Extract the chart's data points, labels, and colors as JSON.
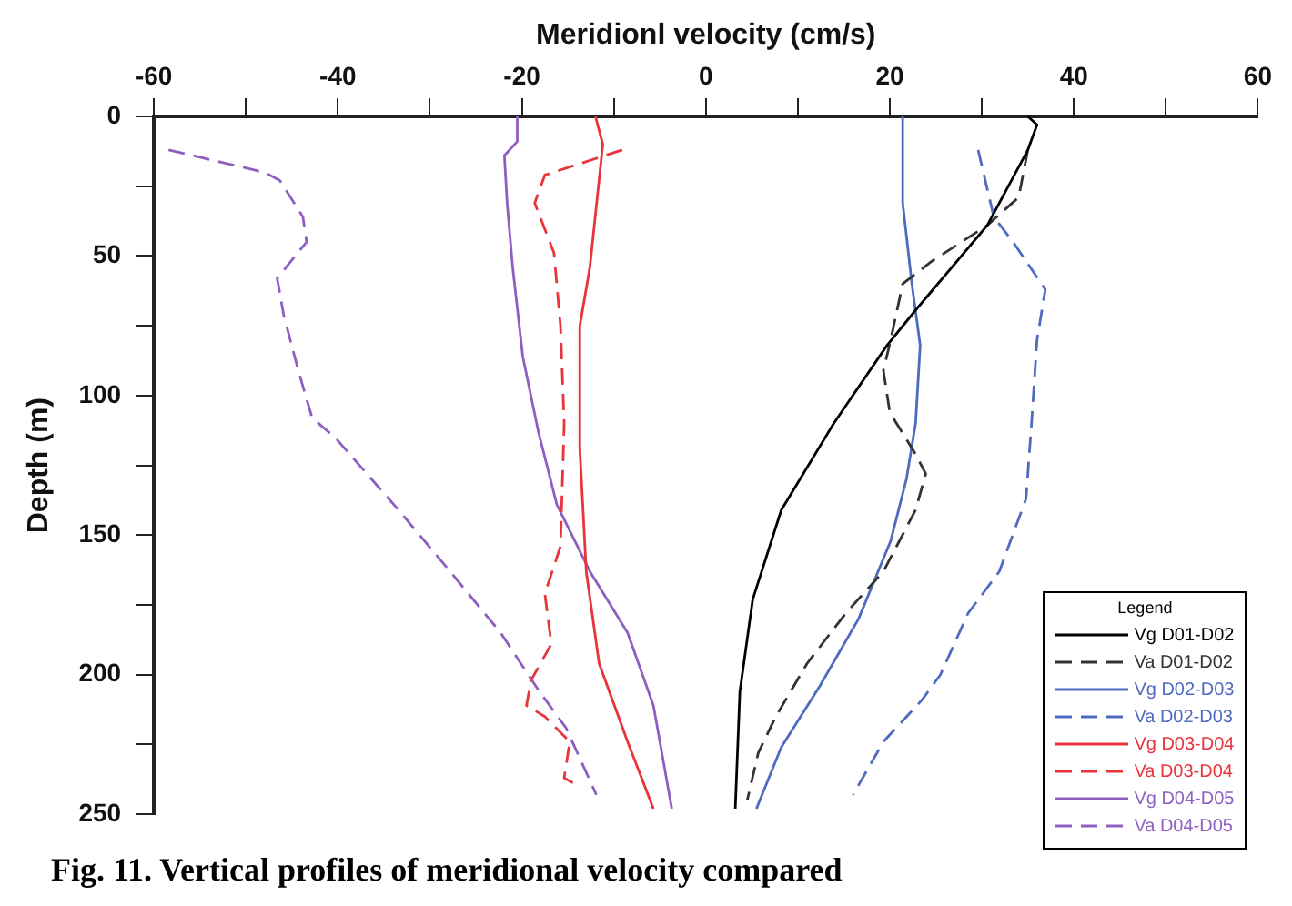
{
  "chart_data": {
    "type": "line",
    "xlabel": "Meridionl velocity (cm/s)",
    "ylabel": "Depth (m)",
    "legend_title": "Legend",
    "legend": "bottom right",
    "grid": false,
    "marker": "none",
    "xlim": [
      -60,
      60
    ],
    "xticks": [
      -60,
      {
        "value": -50,
        "label": null
      },
      -40,
      {
        "value": -30,
        "label": null
      },
      -20,
      {
        "value": -10,
        "label": null
      },
      0,
      {
        "value": 10,
        "label": null
      },
      20,
      {
        "value": 30,
        "label": null
      },
      40,
      {
        "value": 50,
        "label": null
      },
      60
    ],
    "ylim": [
      250,
      0
    ],
    "yticks": [
      0,
      {
        "value": 25,
        "label": null
      },
      50,
      {
        "value": 75,
        "label": null
      },
      100,
      {
        "value": 125,
        "label": null
      },
      150,
      {
        "value": 175,
        "label": null
      },
      200,
      {
        "value": 225,
        "label": null
      },
      250
    ],
    "series": [
      {
        "name": "Vg D01-D02",
        "color": "#000000",
        "line_style": "solid",
        "x": [
          35,
          36,
          35,
          30.6,
          22.9,
          19.7,
          13.9,
          8.2,
          5.1,
          3.7,
          3.2
        ],
        "values": [
          0,
          3,
          12,
          39,
          69,
          82,
          110,
          141,
          173,
          206,
          248
        ]
      },
      {
        "name": "Va D01-D02",
        "color": "#333333",
        "line_style": "dashed",
        "x": [
          35,
          34,
          30.6,
          24.5,
          21.4,
          20.1,
          19.3,
          20,
          22.8,
          23.9,
          22.8,
          19.3,
          15.2,
          11,
          7.6,
          5.7,
          4.5
        ],
        "values": [
          12,
          29,
          39,
          52,
          60,
          80,
          91,
          106,
          121,
          128,
          141,
          163,
          178,
          196,
          215,
          228,
          245
        ]
      },
      {
        "name": "Vg D02-D03",
        "color": "#4f6bbf",
        "line_style": "solid",
        "x": [
          21.4,
          21.4,
          22.4,
          23.3,
          22.8,
          21.8,
          20.1,
          16.6,
          12.4,
          8.2,
          5.5
        ],
        "values": [
          0,
          31,
          60,
          82,
          110,
          130,
          152,
          180,
          204,
          226,
          248
        ]
      },
      {
        "name": "Va D02-D03",
        "color": "#4f6bbf",
        "line_style": "dashed",
        "x": [
          29.6,
          31.3,
          33.4,
          36.9,
          36,
          35.4,
          34.8,
          31.9,
          28.5,
          25.5,
          23.5,
          19.3,
          16
        ],
        "values": [
          12,
          36,
          45,
          62,
          80,
          110,
          137,
          163,
          178,
          200,
          209,
          224,
          243
        ]
      },
      {
        "name": "Vg D03-D04",
        "color": "#e8343a",
        "line_style": "solid",
        "x": [
          -12,
          -11.2,
          -12.6,
          -13.7,
          -13.7,
          -13,
          -11.6,
          -8.5,
          -5.7
        ],
        "values": [
          0,
          10,
          54,
          75,
          119,
          163,
          196,
          224,
          248
        ]
      },
      {
        "name": "Va D03-D04",
        "color": "#e8343a",
        "line_style": "dashed",
        "x": [
          -9.1,
          -17.5,
          -18.6,
          -16.5,
          -15.8,
          -15.4,
          -15.8,
          -17.5,
          -16.8,
          -19,
          -19.5,
          -17.5,
          -14.8,
          -15.4,
          -14.3
        ],
        "values": [
          12,
          21,
          31,
          49,
          75,
          110,
          154,
          171,
          189,
          202,
          211,
          215,
          224,
          237,
          239
        ]
      },
      {
        "name": "Vg D04-D05",
        "color": "#8e5fc1",
        "line_style": "solid",
        "x": [
          -20.5,
          -20.5,
          -21.9,
          -21.6,
          -21,
          -19.9,
          -18.2,
          -16.2,
          -12.6,
          -8.5,
          -5.7,
          -3.7
        ],
        "values": [
          0,
          9,
          14,
          31,
          54,
          86,
          113,
          139,
          163,
          185,
          211,
          248
        ]
      },
      {
        "name": "Va D04-D05",
        "color": "#8e5fc1",
        "line_style": "dashed",
        "x": [
          -58.4,
          -48,
          -46.3,
          -43.8,
          -43.4,
          -46.6,
          -45.9,
          -44.3,
          -42.8,
          -40.3,
          -33.4,
          -27.8,
          -22.3,
          -18.1,
          -15.2,
          -11.9
        ],
        "values": [
          12,
          20,
          23,
          36,
          45,
          58,
          71,
          91,
          108,
          115,
          141,
          163,
          185,
          206,
          219,
          243
        ]
      }
    ],
    "annotations": [
      "Fig. 11. Vertical profiles of meridional velocity compared"
    ]
  }
}
